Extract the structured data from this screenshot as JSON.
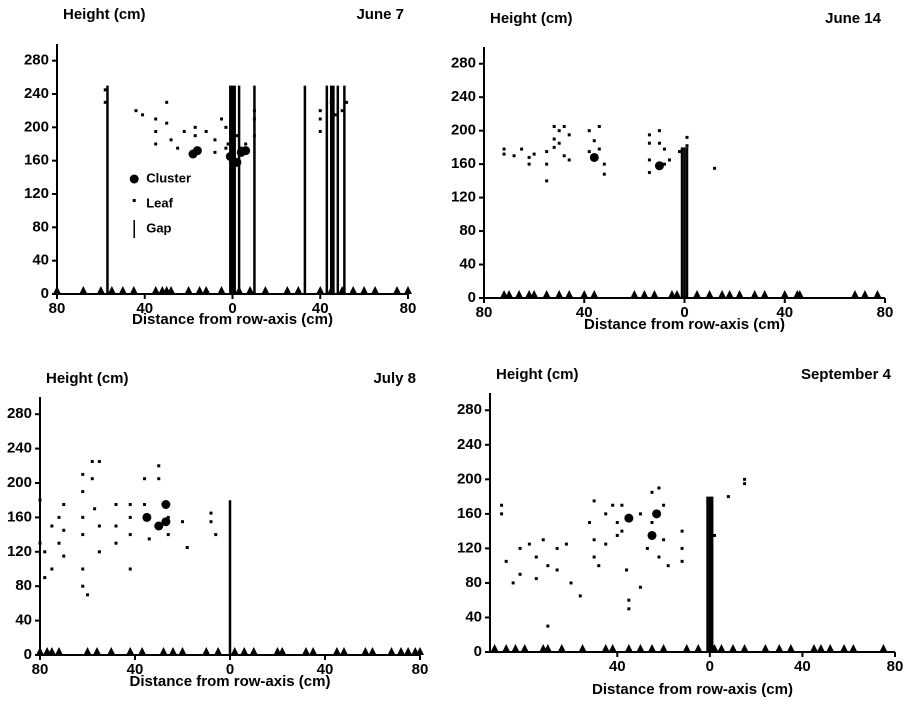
{
  "chart_data": [
    {
      "type": "scatter",
      "title": "June 7",
      "ylabel": "Height (cm)",
      "xlabel": "Distance from row-axis (cm)",
      "xlim": [
        -80,
        80
      ],
      "ylim": [
        0,
        300
      ],
      "xticks": [
        {
          "value": -80,
          "label": "80"
        },
        {
          "value": -40,
          "label": "40"
        },
        0,
        40,
        80
      ],
      "yticks": [
        0,
        40,
        80,
        120,
        160,
        200,
        240,
        280
      ],
      "legend": "center left",
      "series": [
        {
          "name": "Cluster",
          "marker": "circle",
          "color": "#000000",
          "x": [
            -18,
            -16,
            -1,
            2,
            4,
            6
          ],
          "values": [
            168,
            172,
            165,
            158,
            170,
            172
          ]
        },
        {
          "name": "Leaf",
          "marker": "square",
          "color": "#000000",
          "x": [
            -58,
            -58,
            -44,
            -41,
            -35,
            -35,
            -35,
            -30,
            -30,
            -28,
            -25,
            -22,
            -17,
            -17,
            -12,
            -8,
            -8,
            -5,
            -3,
            -3,
            -2,
            0,
            2,
            4,
            6,
            10,
            10,
            10,
            40,
            40,
            40,
            45,
            47,
            50,
            52
          ],
          "values": [
            245,
            230,
            220,
            215,
            210,
            195,
            180,
            230,
            205,
            185,
            175,
            195,
            190,
            200,
            195,
            185,
            170,
            210,
            200,
            175,
            180,
            160,
            190,
            175,
            180,
            210,
            190,
            220,
            220,
            210,
            195,
            230,
            215,
            220,
            230
          ]
        },
        {
          "name": "Gap",
          "marker": "vline",
          "color": "#000000",
          "x": [
            -57,
            -1,
            0,
            1,
            3,
            10,
            33,
            43,
            45,
            46,
            48,
            51
          ],
          "values": [
            250,
            250,
            250,
            250,
            250,
            250,
            250,
            250,
            250,
            250,
            250,
            250
          ]
        },
        {
          "marker": "triangle",
          "color": "#000000",
          "x": [
            -80,
            -68,
            -60,
            -55,
            -50,
            -45,
            -35,
            -32,
            -30,
            -28,
            -20,
            -15,
            -12,
            -5,
            0,
            3,
            8,
            15,
            25,
            30,
            40,
            45,
            50,
            55,
            60,
            65,
            75,
            80
          ],
          "values": [
            0,
            0,
            0,
            0,
            0,
            0,
            0,
            0,
            0,
            0,
            0,
            0,
            0,
            0,
            0,
            0,
            0,
            0,
            0,
            0,
            0,
            0,
            0,
            0,
            0,
            0,
            0,
            0
          ]
        }
      ]
    },
    {
      "type": "scatter",
      "title": "June 14",
      "ylabel": "Height (cm)",
      "xlabel": "Distance from row-axis (cm)",
      "xlim": [
        -80,
        80
      ],
      "ylim": [
        0,
        300
      ],
      "xticks": [
        {
          "value": -80,
          "label": "80"
        },
        {
          "value": -40,
          "label": "40"
        },
        0,
        40,
        80
      ],
      "yticks": [
        0,
        40,
        80,
        120,
        160,
        200,
        240,
        280
      ],
      "series": [
        {
          "marker": "circle",
          "color": "#000000",
          "x": [
            -36,
            -10
          ],
          "values": [
            168,
            158
          ]
        },
        {
          "marker": "square",
          "color": "#000000",
          "x": [
            -72,
            -72,
            -68,
            -65,
            -62,
            -62,
            -60,
            -55,
            -55,
            -55,
            -52,
            -52,
            -52,
            -50,
            -50,
            -48,
            -48,
            -46,
            -46,
            -38,
            -38,
            -36,
            -34,
            -34,
            -32,
            -32,
            -14,
            -14,
            -14,
            -14,
            -10,
            -10,
            -8,
            -8,
            -6,
            -2,
            1,
            1,
            12
          ],
          "values": [
            178,
            172,
            170,
            178,
            168,
            160,
            172,
            175,
            160,
            140,
            205,
            190,
            180,
            200,
            185,
            170,
            205,
            195,
            165,
            175,
            200,
            188,
            205,
            178,
            160,
            148,
            195,
            185,
            165,
            150,
            200,
            185,
            178,
            160,
            165,
            175,
            192,
            182,
            155
          ]
        },
        {
          "marker": "vline",
          "color": "#000000",
          "x": [
            -1,
            0,
            1
          ],
          "values": [
            180,
            180,
            180
          ]
        },
        {
          "marker": "triangle",
          "color": "#000000",
          "x": [
            -72,
            -70,
            -66,
            -62,
            -60,
            -55,
            -50,
            -46,
            -40,
            -36,
            -20,
            -16,
            -12,
            -5,
            -3,
            5,
            10,
            15,
            18,
            22,
            28,
            32,
            40,
            45,
            46,
            68,
            72,
            77
          ],
          "values": [
            0,
            0,
            0,
            0,
            0,
            0,
            0,
            0,
            0,
            0,
            0,
            0,
            0,
            0,
            0,
            0,
            0,
            0,
            0,
            0,
            0,
            0,
            0,
            0,
            0,
            0,
            0,
            0
          ]
        }
      ]
    },
    {
      "type": "scatter",
      "title": "July 8",
      "ylabel": "Height (cm)",
      "xlabel": "Distance from row-axis (cm)",
      "xlim": [
        -80,
        80
      ],
      "ylim": [
        0,
        300
      ],
      "xticks": [
        {
          "value": -80,
          "label": "80"
        },
        {
          "value": -40,
          "label": "40"
        },
        0,
        40,
        80
      ],
      "yticks": [
        0,
        40,
        80,
        120,
        160,
        200,
        240,
        280
      ],
      "series": [
        {
          "marker": "circle",
          "color": "#000000",
          "x": [
            -35,
            -30,
            -27,
            -27
          ],
          "values": [
            160,
            150,
            175,
            155
          ]
        },
        {
          "marker": "square",
          "color": "#000000",
          "x": [
            -80,
            -80,
            -78,
            -78,
            -75,
            -75,
            -72,
            -72,
            -70,
            -70,
            -70,
            -62,
            -62,
            -62,
            -62,
            -62,
            -62,
            -60,
            -58,
            -58,
            -57,
            -55,
            -55,
            -55,
            -48,
            -48,
            -48,
            -42,
            -42,
            -42,
            -42,
            -36,
            -36,
            -34,
            -30,
            -30,
            -26,
            -26,
            -20,
            -18,
            -8,
            -8,
            -6
          ],
          "values": [
            180,
            130,
            120,
            90,
            150,
            100,
            160,
            130,
            175,
            145,
            115,
            210,
            190,
            160,
            140,
            100,
            80,
            70,
            225,
            205,
            170,
            225,
            150,
            120,
            175,
            150,
            130,
            175,
            160,
            140,
            100,
            205,
            175,
            135,
            220,
            205,
            160,
            140,
            155,
            125,
            165,
            155,
            140
          ]
        },
        {
          "marker": "vline",
          "color": "#000000",
          "x": [
            0
          ],
          "values": [
            180
          ]
        },
        {
          "marker": "triangle",
          "color": "#000000",
          "x": [
            -80,
            -77,
            -75,
            -72,
            -60,
            -56,
            -50,
            -42,
            -37,
            -28,
            -24,
            -20,
            -10,
            -5,
            2,
            6,
            10,
            20,
            22,
            32,
            35,
            45,
            48,
            57,
            60,
            68,
            72,
            75,
            78,
            80
          ],
          "values": [
            0,
            0,
            0,
            0,
            0,
            0,
            0,
            0,
            0,
            0,
            0,
            0,
            0,
            0,
            0,
            0,
            0,
            0,
            0,
            0,
            0,
            0,
            0,
            0,
            0,
            0,
            0,
            0,
            0,
            0
          ]
        }
      ]
    },
    {
      "type": "scatter",
      "title": "September 4",
      "ylabel": "Height (cm)",
      "xlabel": "Distance from row-axis (cm)",
      "xlim": [
        -95,
        80
      ],
      "ylim": [
        0,
        300
      ],
      "xticks": [
        {
          "value": -40,
          "label": "40"
        },
        0,
        40,
        80
      ],
      "yticks": [
        0,
        40,
        80,
        120,
        160,
        200,
        240,
        280
      ],
      "series": [
        {
          "marker": "circle",
          "color": "#000000",
          "x": [
            -35,
            -25,
            -23
          ],
          "values": [
            155,
            135,
            160
          ]
        },
        {
          "marker": "square",
          "color": "#000000",
          "x": [
            -90,
            -90,
            -88,
            -85,
            -82,
            -82,
            -78,
            -75,
            -75,
            -72,
            -70,
            -70,
            -66,
            -66,
            -62,
            -60,
            -56,
            -52,
            -50,
            -50,
            -50,
            -48,
            -45,
            -45,
            -42,
            -40,
            -40,
            -38,
            -38,
            -36,
            -35,
            -35,
            -30,
            -30,
            -27,
            -25,
            -25,
            -22,
            -22,
            -20,
            -20,
            -18,
            -12,
            -12,
            -12,
            2,
            8,
            15,
            15
          ],
          "values": [
            170,
            160,
            105,
            80,
            120,
            90,
            125,
            110,
            85,
            130,
            100,
            30,
            120,
            95,
            125,
            80,
            65,
            150,
            175,
            130,
            110,
            100,
            160,
            125,
            170,
            150,
            135,
            170,
            140,
            95,
            60,
            50,
            160,
            75,
            120,
            185,
            150,
            190,
            110,
            170,
            130,
            100,
            140,
            120,
            105,
            135,
            180,
            200,
            195
          ]
        },
        {
          "marker": "vline",
          "color": "#000000",
          "x": [
            -1,
            0,
            1
          ],
          "values": [
            180,
            180,
            180
          ]
        },
        {
          "marker": "triangle",
          "color": "#000000",
          "x": [
            -93,
            -88,
            -84,
            -80,
            -72,
            -70,
            -64,
            -55,
            -45,
            -42,
            -35,
            -30,
            -25,
            -20,
            -10,
            -5,
            2,
            5,
            10,
            15,
            24,
            30,
            35,
            45,
            48,
            52,
            58,
            62,
            75
          ],
          "values": [
            0,
            0,
            0,
            0,
            0,
            0,
            0,
            0,
            0,
            0,
            0,
            0,
            0,
            0,
            0,
            0,
            0,
            0,
            0,
            0,
            0,
            0,
            0,
            0,
            0,
            0,
            0,
            0,
            0
          ]
        }
      ]
    }
  ]
}
